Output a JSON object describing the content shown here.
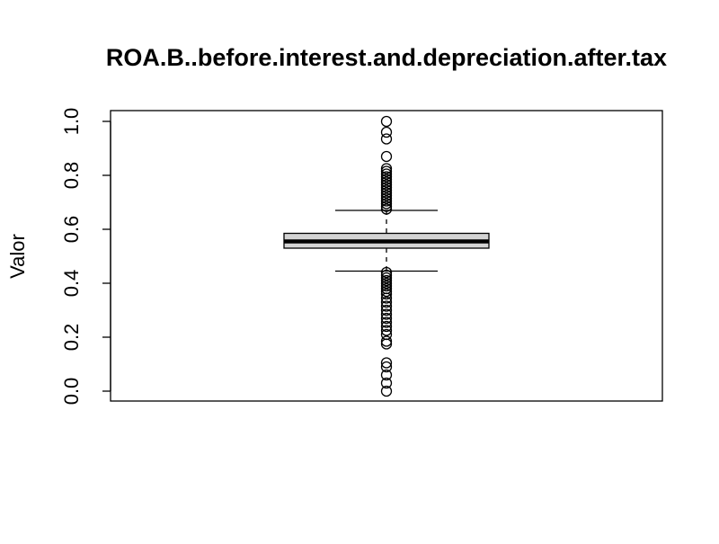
{
  "chart_data": {
    "type": "boxplot",
    "title": "ROA.B..before.interest.and.depreciation.after.tax",
    "xlabel": "",
    "ylabel": "Valor",
    "ylim": [
      0.0,
      1.0
    ],
    "y_ticks": [
      "0.0",
      "0.2",
      "0.4",
      "0.6",
      "0.8",
      "1.0"
    ],
    "y_tick_values": [
      0.0,
      0.2,
      0.4,
      0.6,
      0.8,
      1.0
    ],
    "grid": false,
    "box": {
      "whisker_low": 0.445,
      "q1": 0.53,
      "median": 0.555,
      "q3": 0.585,
      "whisker_high": 0.67,
      "box_fill": "#d3d3d3"
    },
    "outliers": [
      0.0,
      0.03,
      0.06,
      0.09,
      0.105,
      0.175,
      0.185,
      0.21,
      0.225,
      0.24,
      0.255,
      0.27,
      0.285,
      0.3,
      0.315,
      0.33,
      0.345,
      0.36,
      0.37,
      0.38,
      0.39,
      0.4,
      0.41,
      0.42,
      0.43,
      0.44,
      0.675,
      0.685,
      0.695,
      0.705,
      0.715,
      0.725,
      0.735,
      0.745,
      0.755,
      0.765,
      0.775,
      0.785,
      0.795,
      0.805,
      0.815,
      0.825,
      0.87,
      0.935,
      0.96,
      1.0
    ]
  }
}
